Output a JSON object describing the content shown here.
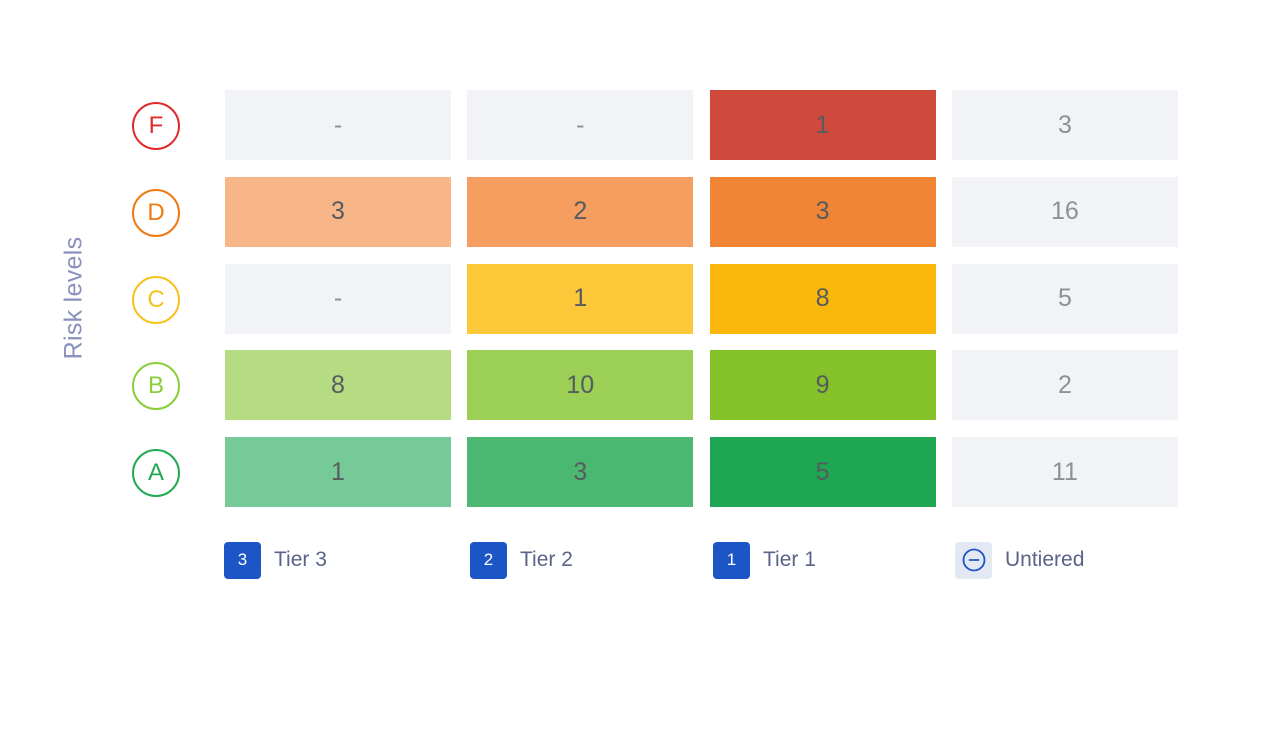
{
  "chart_data": {
    "type": "heatmap",
    "ylabel": "Risk levels",
    "rows": [
      "F",
      "D",
      "C",
      "B",
      "A"
    ],
    "columns": [
      "Tier 3",
      "Tier 2",
      "Tier 1",
      "Untiered"
    ],
    "values": [
      [
        "-",
        "-",
        "1",
        "3"
      ],
      [
        "3",
        "2",
        "3",
        "16"
      ],
      [
        "-",
        "1",
        "8",
        "5"
      ],
      [
        "8",
        "10",
        "9",
        "2"
      ],
      [
        "1",
        "3",
        "5",
        "11"
      ]
    ],
    "cell_colors": [
      [
        "#f2f3f7",
        "#f2f3f7",
        "#cf4a3c",
        "#f2f3f7"
      ],
      [
        "#f8b688",
        "#f59e60",
        "#f08536",
        "#f2f3f7"
      ],
      [
        "#f2f3f7",
        "#fbc83a",
        "#fbb80c",
        "#f2f3f7"
      ],
      [
        "#b5dc82",
        "#9ccf55",
        "#85c128",
        "#f2f3f7"
      ],
      [
        "#76ca98",
        "#4bb872",
        "#1ea653",
        "#f2f3f7"
      ]
    ],
    "empty_text_color": "#8d9096",
    "row_badge_colors": {
      "F": "#e02b2b",
      "D": "#f07a12",
      "C": "#f7c21d",
      "B": "#8bcd3b",
      "A": "#22a954"
    }
  },
  "legend": [
    {
      "badge": "3",
      "label": "Tier 3",
      "icon": "tier-3-badge-icon"
    },
    {
      "badge": "2",
      "label": "Tier 2",
      "icon": "tier-2-badge-icon"
    },
    {
      "badge": "1",
      "label": "Tier 1",
      "icon": "tier-1-badge-icon"
    },
    {
      "badge": "",
      "label": "Untiered",
      "icon": "minus-circle-icon"
    }
  ]
}
